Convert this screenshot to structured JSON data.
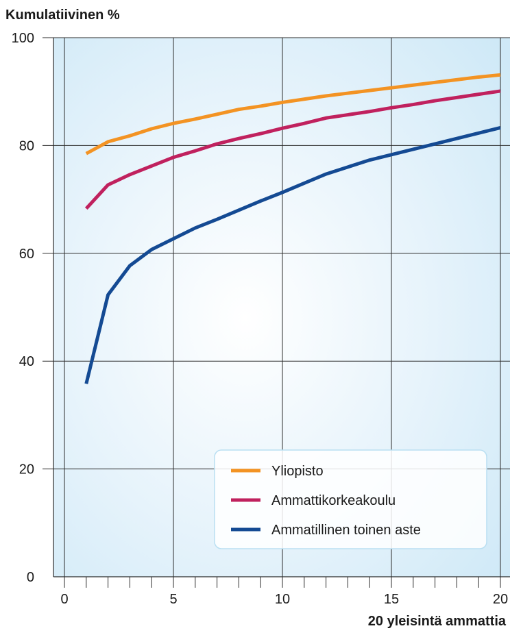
{
  "chart_data": {
    "type": "line",
    "title": "",
    "ylabel": "Kumulatiivinen %",
    "xlabel": "20 yleisintä ammattia",
    "xlim": [
      0,
      20
    ],
    "ylim": [
      0,
      100
    ],
    "x_ticks": [
      "0",
      "5",
      "10",
      "15",
      "20"
    ],
    "y_ticks": [
      "0",
      "20",
      "40",
      "60",
      "80",
      "100"
    ],
    "grid": true,
    "legend_position": "bottom-right",
    "x": [
      1,
      2,
      3,
      4,
      5,
      6,
      7,
      8,
      9,
      10,
      11,
      12,
      13,
      14,
      15,
      16,
      17,
      18,
      19,
      20
    ],
    "series": [
      {
        "name": "Yliopisto",
        "color": "#f39323",
        "values": [
          78.5,
          80.7,
          81.8,
          83.1,
          84.1,
          84.9,
          85.8,
          86.7,
          87.3,
          88.0,
          88.6,
          89.2,
          89.7,
          90.2,
          90.7,
          91.2,
          91.7,
          92.2,
          92.7,
          93.1
        ]
      },
      {
        "name": "Ammattikorkeakoulu",
        "color": "#c0215e",
        "values": [
          68.3,
          72.7,
          74.6,
          76.2,
          77.8,
          79.0,
          80.3,
          81.3,
          82.2,
          83.2,
          84.1,
          85.1,
          85.7,
          86.3,
          87.0,
          87.6,
          88.3,
          88.9,
          89.5,
          90.1
        ]
      },
      {
        "name": "Ammatillinen toinen aste",
        "color": "#144a93",
        "values": [
          35.8,
          52.3,
          57.7,
          60.7,
          62.7,
          64.7,
          66.3,
          68.0,
          69.7,
          71.3,
          73.0,
          74.7,
          76.0,
          77.3,
          78.3,
          79.3,
          80.3,
          81.3,
          82.3,
          83.3
        ]
      }
    ]
  }
}
